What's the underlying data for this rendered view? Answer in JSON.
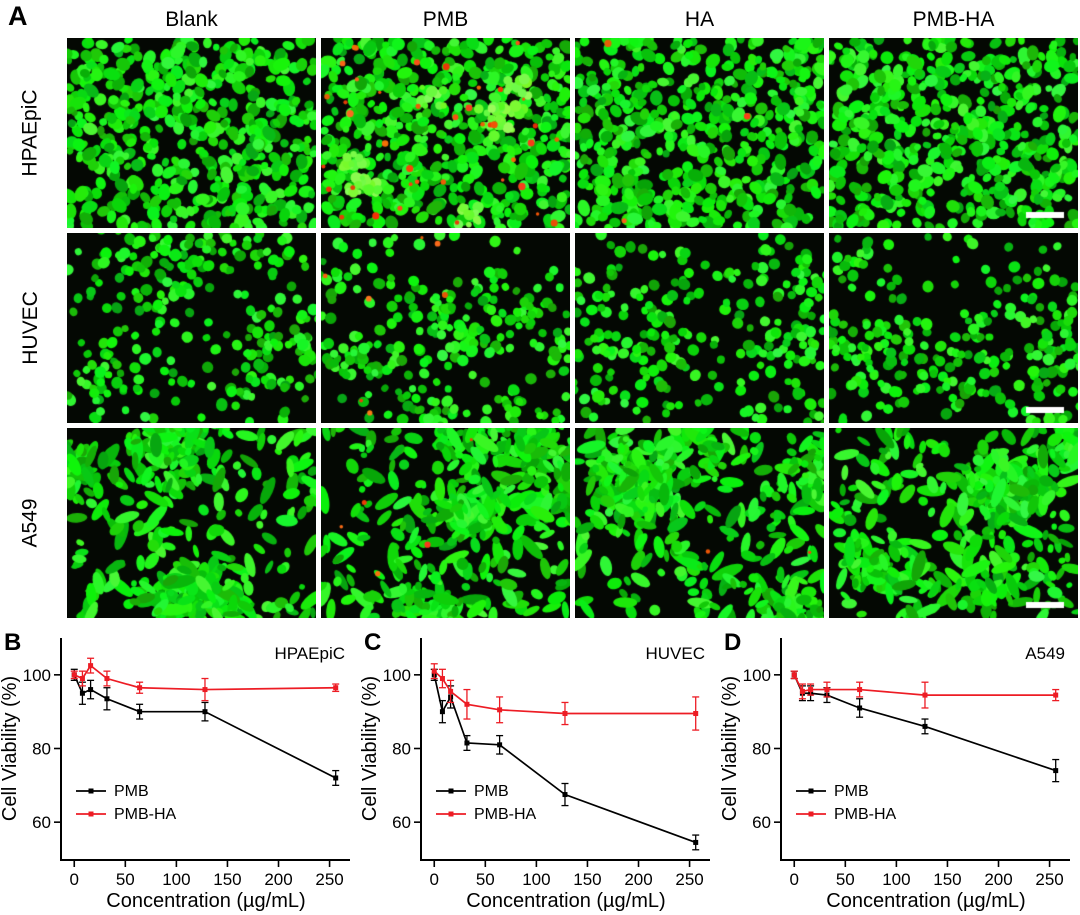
{
  "figure": {
    "panelA": {
      "label": "A",
      "columns": [
        "Blank",
        "PMB",
        "HA",
        "PMB-HA"
      ],
      "rows": [
        "HPAEpiC",
        "HUVEC",
        "A549"
      ],
      "scale_bar": "white bar, bottom-right of right-most column images"
    }
  },
  "colors": {
    "pmb_series": "#000000",
    "pmbha_series": "#ed1c24",
    "live_cell_green": "#33dd22",
    "dead_cell_red": "#ff2a00",
    "micrograph_background": "#040803"
  },
  "chart_data": [
    {
      "type": "line",
      "panel_label": "B",
      "title": "HPAEpiC",
      "xlabel": "Concentration (µg/mL)",
      "ylabel": "Cell Viability (%)",
      "x": [
        0,
        8,
        16,
        32,
        64,
        128,
        256
      ],
      "xlim": [
        -12,
        270
      ],
      "ylim": [
        50,
        110
      ],
      "xticks": [
        0,
        50,
        100,
        150,
        200,
        250
      ],
      "yticks": [
        60,
        80,
        100
      ],
      "grid": false,
      "legend_position": "lower-left",
      "series": [
        {
          "name": "PMB",
          "color": "#000000",
          "values": [
            100,
            95,
            96,
            93.5,
            90,
            90,
            72
          ],
          "errors": [
            1.5,
            3,
            2.5,
            3,
            2,
            2.5,
            2
          ]
        },
        {
          "name": "PMB-HA",
          "color": "#ed1c24",
          "values": [
            100,
            99,
            102.5,
            99,
            96.5,
            96,
            96.5
          ],
          "errors": [
            1,
            2,
            2,
            2,
            1.5,
            3,
            1
          ]
        }
      ]
    },
    {
      "type": "line",
      "panel_label": "C",
      "title": "HUVEC",
      "xlabel": "Concentration (µg/mL)",
      "ylabel": "Cell Viability (%)",
      "x": [
        0,
        8,
        16,
        32,
        64,
        128,
        256
      ],
      "xlim": [
        -12,
        270
      ],
      "ylim": [
        50,
        110
      ],
      "xticks": [
        0,
        50,
        100,
        150,
        200,
        250
      ],
      "yticks": [
        60,
        80,
        100
      ],
      "grid": false,
      "legend_position": "lower-left",
      "series": [
        {
          "name": "PMB",
          "color": "#000000",
          "values": [
            100,
            90,
            94,
            81.5,
            81,
            67.5,
            54.5
          ],
          "errors": [
            1.5,
            3,
            3,
            2,
            2.5,
            3,
            2
          ]
        },
        {
          "name": "PMB-HA",
          "color": "#ed1c24",
          "values": [
            101,
            99,
            95.5,
            92,
            90.5,
            89.5,
            89.5
          ],
          "errors": [
            2,
            2.5,
            3,
            4,
            3.5,
            3,
            4.5
          ]
        }
      ]
    },
    {
      "type": "line",
      "panel_label": "D",
      "title": "A549",
      "xlabel": "Concentration (µg/mL)",
      "ylabel": "Cell Viability (%)",
      "x": [
        0,
        8,
        16,
        32,
        64,
        128,
        256
      ],
      "xlim": [
        -12,
        270
      ],
      "ylim": [
        50,
        110
      ],
      "xticks": [
        0,
        50,
        100,
        150,
        200,
        250
      ],
      "yticks": [
        60,
        80,
        100
      ],
      "grid": false,
      "legend_position": "lower-left",
      "series": [
        {
          "name": "PMB",
          "color": "#000000",
          "values": [
            100,
            95,
            95,
            94.5,
            91,
            86,
            74
          ],
          "errors": [
            1,
            2,
            2,
            2,
            2.5,
            2,
            3
          ]
        },
        {
          "name": "PMB-HA",
          "color": "#ed1c24",
          "values": [
            100,
            95.5,
            96,
            96,
            96,
            94.5,
            94.5
          ],
          "errors": [
            1,
            2,
            1.5,
            2,
            2,
            3.5,
            1.5
          ]
        }
      ]
    }
  ]
}
